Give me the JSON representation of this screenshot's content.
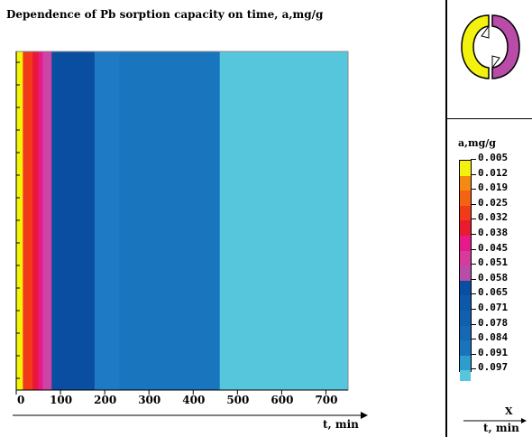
{
  "chart_data": {
    "type": "heatmap",
    "title": "Dependence of Pb sorption capacity on time, a,mg/g",
    "xlabel": "t, min",
    "xlim": [
      0,
      750
    ],
    "x_ticks": [
      0,
      100,
      200,
      300,
      400,
      500,
      600,
      700
    ],
    "bands": [
      {
        "x_start": 0,
        "x_end": 15,
        "level": 0.005,
        "color": "#f5f50a"
      },
      {
        "x_start": 15,
        "x_end": 37,
        "level": 0.025,
        "color": "#f03a1a"
      },
      {
        "x_start": 37,
        "x_end": 50,
        "level": 0.032,
        "color": "#e8183a"
      },
      {
        "x_start": 50,
        "x_end": 60,
        "level": 0.038,
        "color": "#e8198a"
      },
      {
        "x_start": 60,
        "x_end": 80,
        "level": 0.045,
        "color": "#cc44a4"
      },
      {
        "x_start": 80,
        "x_end": 177,
        "level": 0.058,
        "color": "#0a4ea2"
      },
      {
        "x_start": 177,
        "x_end": 233,
        "level": 0.078,
        "color": "#1e7ac4"
      },
      {
        "x_start": 233,
        "x_end": 460,
        "level": 0.084,
        "color": "#1976be"
      },
      {
        "x_start": 460,
        "x_end": 750,
        "level": 0.097,
        "color": "#56c6dc"
      }
    ],
    "legend": {
      "title": "a,mg/g",
      "levels": [
        "0.005",
        "0.012",
        "0.019",
        "0.025",
        "0.032",
        "0.038",
        "0.045",
        "0.051",
        "0.058",
        "0.065",
        "0.071",
        "0.078",
        "0.084",
        "0.091",
        "0.097"
      ],
      "colors": [
        "#f2f20e",
        "#f58a12",
        "#f26414",
        "#f03a1a",
        "#e81c2e",
        "#e8198a",
        "#d63a9a",
        "#b84ca8",
        "#0a4ea2",
        "#0d58a8",
        "#1160ae",
        "#1668b4",
        "#1a74bc",
        "#2e9ccc",
        "#56c6dc"
      ]
    },
    "grid": false
  },
  "corner": {
    "x_label": "X",
    "t_label": "t, min"
  },
  "logo": {
    "left_color": "#f2f20e",
    "right_color": "#b84ca8"
  }
}
